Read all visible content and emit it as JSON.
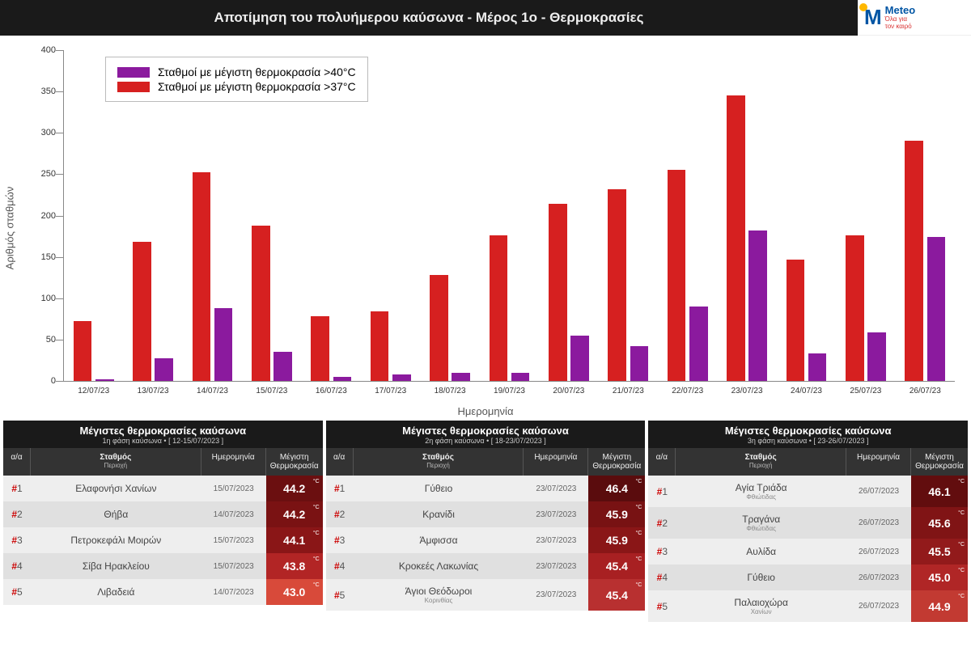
{
  "header": {
    "title": "Αποτίμηση του πολυήμερου καύσωνα - Μέρος 1ο - Θερμοκρασίες",
    "logo_brand": "Meteo",
    "logo_sub1": "Όλα για",
    "logo_sub2": "τον καιρό"
  },
  "chart": {
    "type": "bar",
    "ylabel": "Αριθμός σταθμών",
    "xlabel": "Ημερομηνία",
    "ylim": [
      0,
      400
    ],
    "ytick_step": 50,
    "categories": [
      "12/07/23",
      "13/07/23",
      "14/07/23",
      "15/07/23",
      "16/07/23",
      "17/07/23",
      "18/07/23",
      "19/07/23",
      "20/07/23",
      "21/07/23",
      "22/07/23",
      "23/07/23",
      "24/07/23",
      "25/07/23",
      "26/07/23"
    ],
    "series": [
      {
        "label": "Σταθμοί με μέγιστη θερμοκρασία >40°C",
        "color": "#8b1a9e",
        "values": [
          2,
          27,
          88,
          35,
          5,
          8,
          10,
          10,
          55,
          42,
          90,
          182,
          33,
          59,
          174
        ]
      },
      {
        "label": "Σταθμοί με μέγιστη θερμοκρασία >37°C",
        "color": "#d62020",
        "values": [
          72,
          168,
          252,
          188,
          78,
          84,
          128,
          176,
          214,
          232,
          255,
          345,
          147,
          176,
          290
        ]
      }
    ],
    "bar_group_width": 0.68,
    "bar_gap": 0.06,
    "axis_color": "#888",
    "label_fontsize": 13,
    "tick_fontsize": 11
  },
  "tables_common": {
    "col_idx": "α/α",
    "col_station": "Σταθμός",
    "col_station_sub": "Περιοχή",
    "col_date": "Ημερομηνία",
    "col_temp": "Μέγιστη Θερμοκρασία",
    "deg_unit": "°C"
  },
  "tables": [
    {
      "title": "Μέγιστες θερμοκρασίες καύσωνα",
      "subtitle": "1η φάση καύσωνα • [ 12-15/07/2023 ]",
      "rows": [
        {
          "rank": 1,
          "station": "Ελαφονήσι Χανίων",
          "sub": "",
          "date": "15/07/2023",
          "temp": "44.2",
          "temp_color": "#6b0f10"
        },
        {
          "rank": 2,
          "station": "Θήβα",
          "sub": "",
          "date": "14/07/2023",
          "temp": "44.2",
          "temp_color": "#7a1213"
        },
        {
          "rank": 3,
          "station": "Πετροκεφάλι Μοιρών",
          "sub": "",
          "date": "15/07/2023",
          "temp": "44.1",
          "temp_color": "#8a1617"
        },
        {
          "rank": 4,
          "station": "Σίβα Ηρακλείου",
          "sub": "",
          "date": "15/07/2023",
          "temp": "43.8",
          "temp_color": "#b22525"
        },
        {
          "rank": 5,
          "station": "Λιβαδειά",
          "sub": "",
          "date": "14/07/2023",
          "temp": "43.0",
          "temp_color": "#d84a3a"
        }
      ]
    },
    {
      "title": "Μέγιστες θερμοκρασίες καύσωνα",
      "subtitle": "2η φάση καύσωνα • [ 18-23/07/2023 ]",
      "rows": [
        {
          "rank": 1,
          "station": "Γύθειο",
          "sub": "",
          "date": "23/07/2023",
          "temp": "46.4",
          "temp_color": "#5a0c0d"
        },
        {
          "rank": 2,
          "station": "Κρανίδι",
          "sub": "",
          "date": "23/07/2023",
          "temp": "45.9",
          "temp_color": "#781213"
        },
        {
          "rank": 3,
          "station": "Άμφισσα",
          "sub": "",
          "date": "23/07/2023",
          "temp": "45.9",
          "temp_color": "#8a1617"
        },
        {
          "rank": 4,
          "station": "Κροκεές Λακωνίας",
          "sub": "",
          "date": "23/07/2023",
          "temp": "45.4",
          "temp_color": "#a82022"
        },
        {
          "rank": 5,
          "station": "Άγιοι Θεόδωροι",
          "sub": "Κορινθίας",
          "date": "23/07/2023",
          "temp": "45.4",
          "temp_color": "#b83030"
        }
      ]
    },
    {
      "title": "Μέγιστες θερμοκρασίες καύσωνα",
      "subtitle": "3η φάση καύσωνα • [ 23-26/07/2023 ]",
      "rows": [
        {
          "rank": 1,
          "station": "Αγία Τριάδα",
          "sub": "Φθιώτιδας",
          "date": "26/07/2023",
          "temp": "46.1",
          "temp_color": "#620d0e"
        },
        {
          "rank": 2,
          "station": "Τραγάνα",
          "sub": "Φθιώτιδας",
          "date": "26/07/2023",
          "temp": "45.6",
          "temp_color": "#801415"
        },
        {
          "rank": 3,
          "station": "Αυλίδα",
          "sub": "",
          "date": "26/07/2023",
          "temp": "45.5",
          "temp_color": "#921a1b"
        },
        {
          "rank": 4,
          "station": "Γύθειο",
          "sub": "",
          "date": "26/07/2023",
          "temp": "45.0",
          "temp_color": "#b02626"
        },
        {
          "rank": 5,
          "station": "Παλαιοχώρα",
          "sub": "Χανίων",
          "date": "26/07/2023",
          "temp": "44.9",
          "temp_color": "#c23a32"
        }
      ]
    }
  ]
}
